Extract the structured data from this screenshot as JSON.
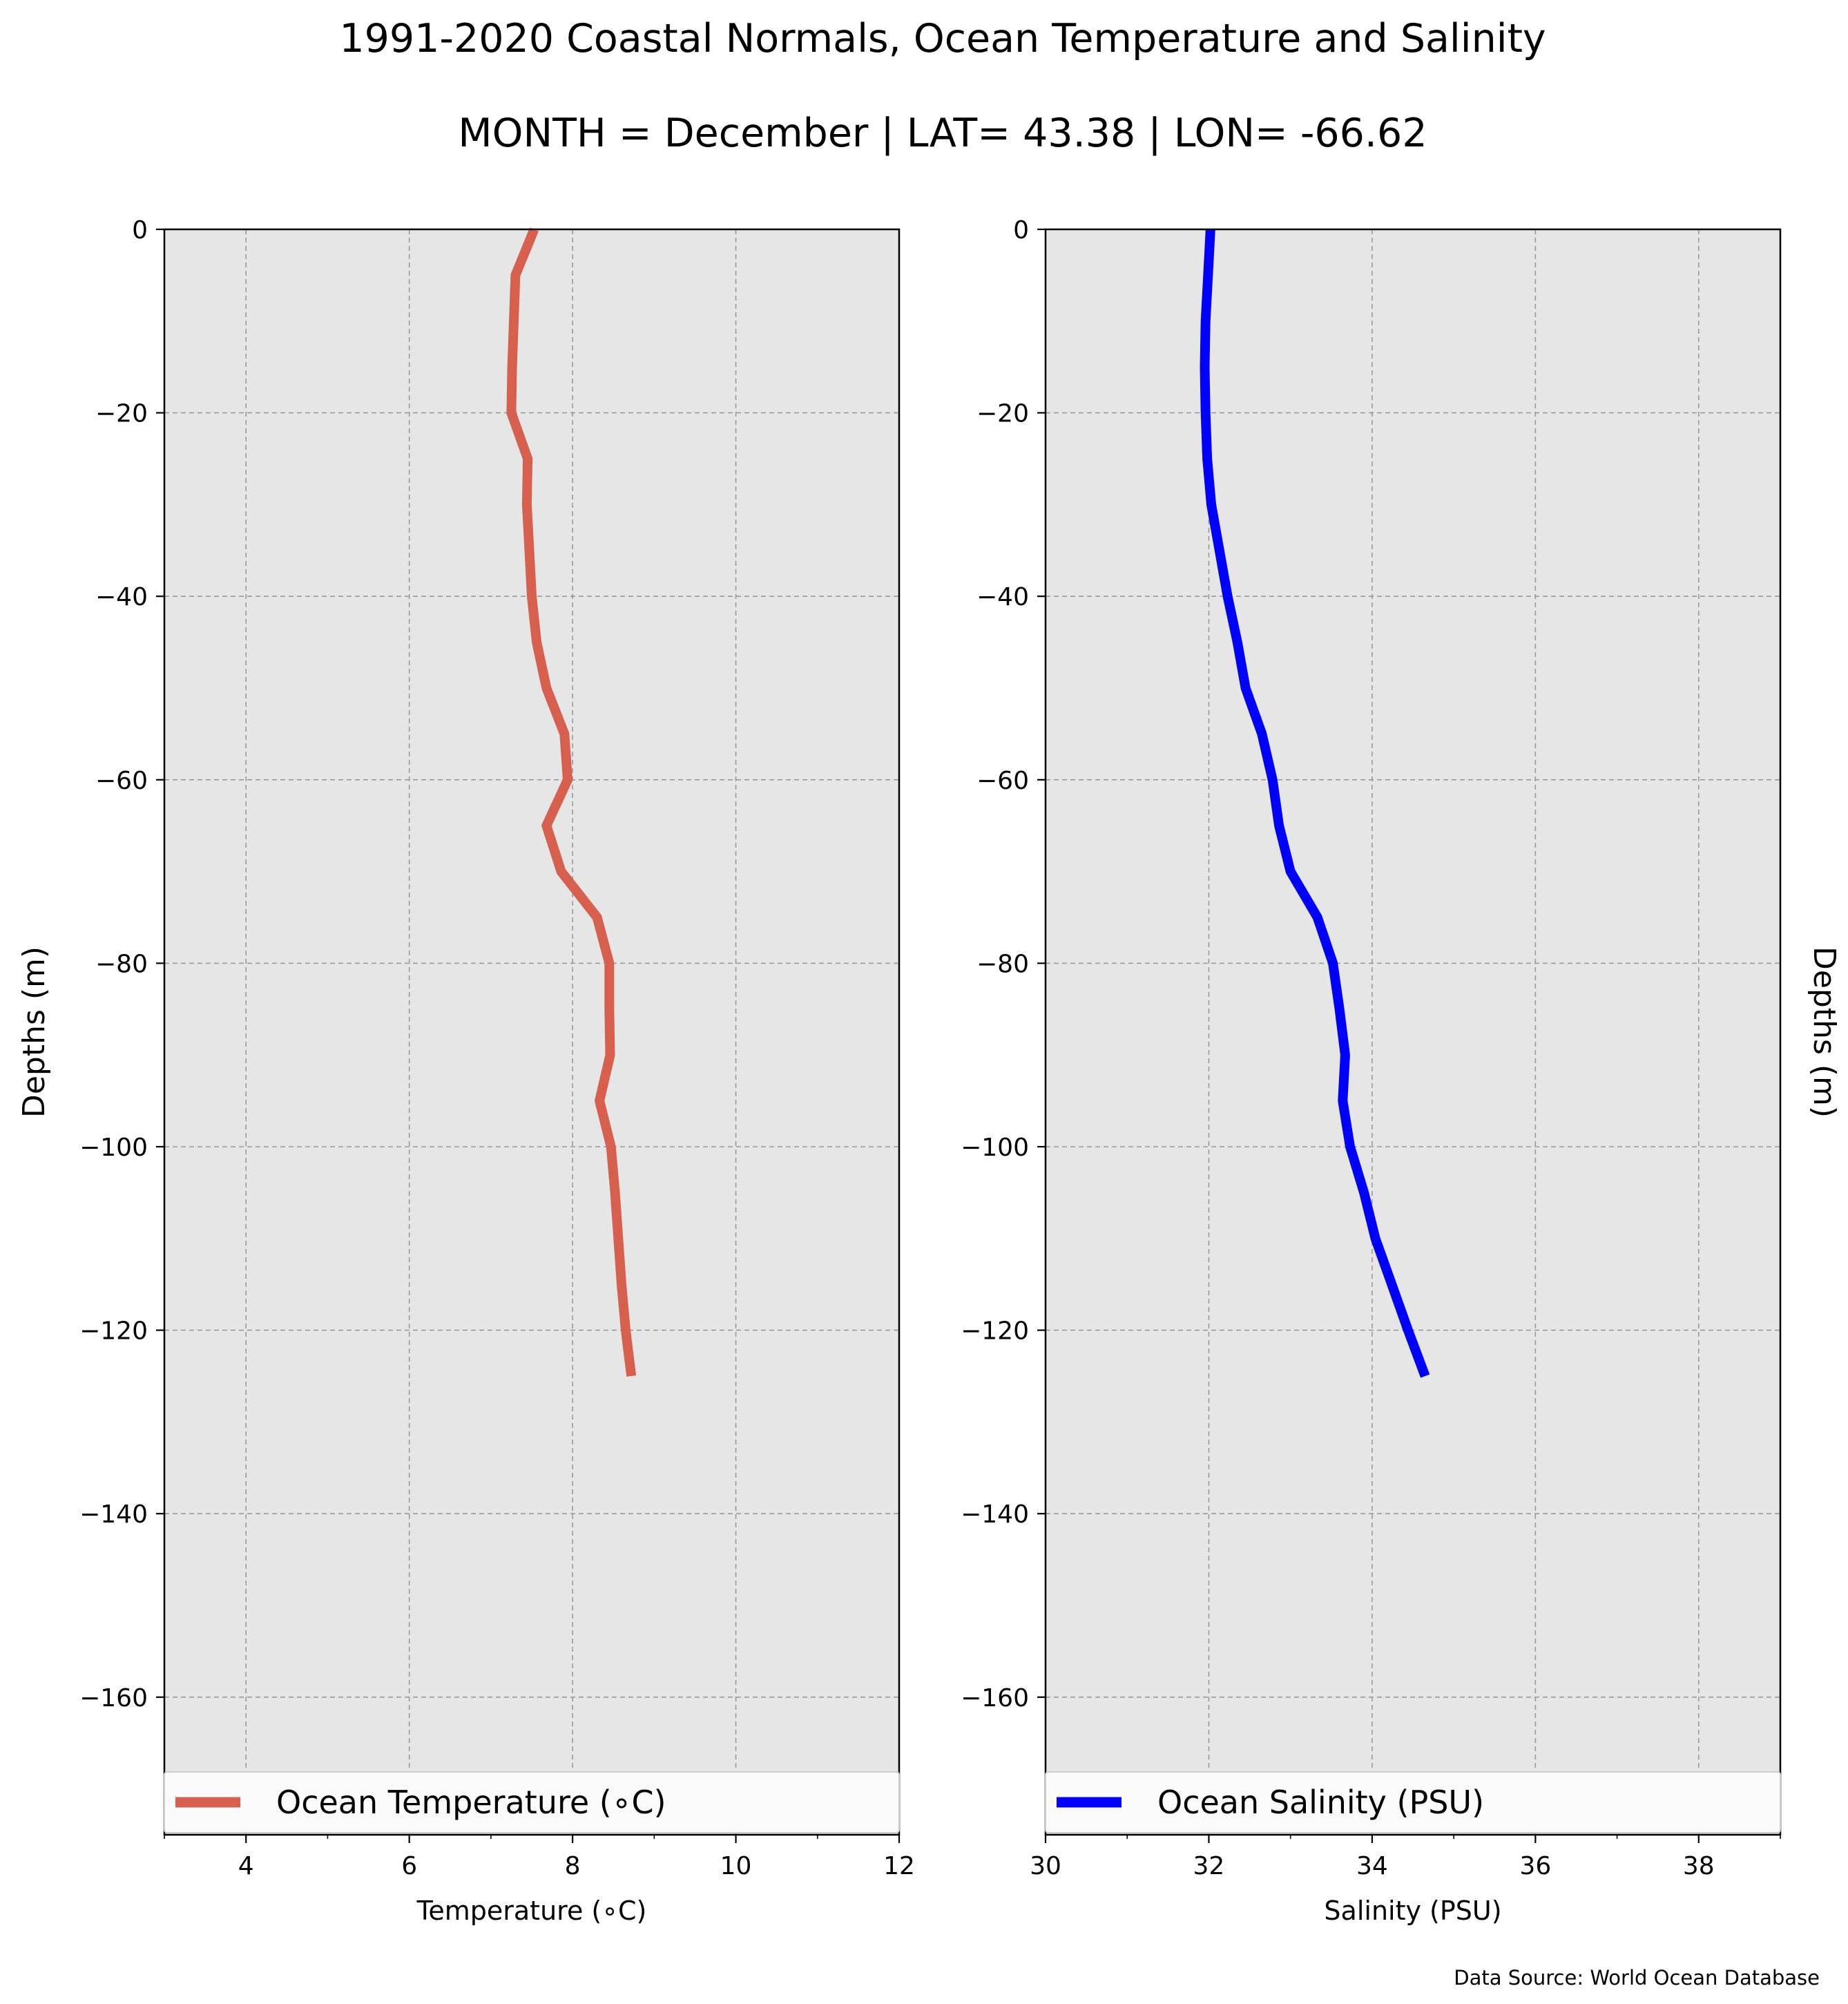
{
  "figure": {
    "title": "1991-2020 Coastal Normals, Ocean Temperature and Salinity",
    "subtitle": "MONTH = December | LAT= 43.38 | LON= -66.62",
    "source": "Data Source: World Ocean Database"
  },
  "chart_data": [
    {
      "type": "line",
      "xlabel": "Temperature ($^\\circ$C)",
      "xlabel_display": "Temperature (∘C)",
      "ylabel": "Depths (m)",
      "xlim": [
        3,
        12
      ],
      "ylim": [
        -175,
        0
      ],
      "xticks": [
        4,
        6,
        8,
        10,
        12
      ],
      "yticks": [
        0,
        -20,
        -40,
        -60,
        -80,
        -100,
        -120,
        -140,
        -160
      ],
      "grid": true,
      "legend_position": "lower center",
      "series": [
        {
          "name": "Ocean Temperature (∘C)",
          "color": "#d6604d",
          "points": [
            {
              "x": 7.53,
              "y": 0
            },
            {
              "x": 7.3,
              "y": -5
            },
            {
              "x": 7.28,
              "y": -10
            },
            {
              "x": 7.26,
              "y": -15
            },
            {
              "x": 7.25,
              "y": -20
            },
            {
              "x": 7.45,
              "y": -25
            },
            {
              "x": 7.44,
              "y": -30
            },
            {
              "x": 7.47,
              "y": -35
            },
            {
              "x": 7.5,
              "y": -40
            },
            {
              "x": 7.56,
              "y": -45
            },
            {
              "x": 7.68,
              "y": -50
            },
            {
              "x": 7.9,
              "y": -55
            },
            {
              "x": 7.94,
              "y": -60
            },
            {
              "x": 7.68,
              "y": -65
            },
            {
              "x": 7.86,
              "y": -70
            },
            {
              "x": 8.3,
              "y": -75
            },
            {
              "x": 8.45,
              "y": -80
            },
            {
              "x": 8.45,
              "y": -85
            },
            {
              "x": 8.46,
              "y": -90
            },
            {
              "x": 8.33,
              "y": -95
            },
            {
              "x": 8.47,
              "y": -100
            },
            {
              "x": 8.52,
              "y": -105
            },
            {
              "x": 8.56,
              "y": -110
            },
            {
              "x": 8.6,
              "y": -115
            },
            {
              "x": 8.65,
              "y": -120
            },
            {
              "x": 8.72,
              "y": -125
            }
          ]
        }
      ]
    },
    {
      "type": "line",
      "xlabel": "Salinity (PSU)",
      "ylabel": "Depths (m)",
      "xlim": [
        30,
        39
      ],
      "ylim": [
        -175,
        0
      ],
      "xticks": [
        30,
        32,
        34,
        36,
        38
      ],
      "yticks": [
        0,
        -20,
        -40,
        -60,
        -80,
        -100,
        -120,
        -140,
        -160
      ],
      "grid": true,
      "legend_position": "lower center",
      "series": [
        {
          "name": "Ocean Salinity (PSU)",
          "color": "#0000ff",
          "points": [
            {
              "x": 32.02,
              "y": 0
            },
            {
              "x": 31.99,
              "y": -5
            },
            {
              "x": 31.96,
              "y": -10
            },
            {
              "x": 31.95,
              "y": -15
            },
            {
              "x": 31.96,
              "y": -20
            },
            {
              "x": 31.98,
              "y": -25
            },
            {
              "x": 32.03,
              "y": -30
            },
            {
              "x": 32.13,
              "y": -35
            },
            {
              "x": 32.23,
              "y": -40
            },
            {
              "x": 32.35,
              "y": -45
            },
            {
              "x": 32.45,
              "y": -50
            },
            {
              "x": 32.65,
              "y": -55
            },
            {
              "x": 32.78,
              "y": -60
            },
            {
              "x": 32.86,
              "y": -65
            },
            {
              "x": 33.0,
              "y": -70
            },
            {
              "x": 33.33,
              "y": -75
            },
            {
              "x": 33.52,
              "y": -80
            },
            {
              "x": 33.6,
              "y": -85
            },
            {
              "x": 33.67,
              "y": -90
            },
            {
              "x": 33.64,
              "y": -95
            },
            {
              "x": 33.73,
              "y": -100
            },
            {
              "x": 33.9,
              "y": -105
            },
            {
              "x": 34.04,
              "y": -110
            },
            {
              "x": 34.24,
              "y": -115
            },
            {
              "x": 34.44,
              "y": -120
            },
            {
              "x": 34.65,
              "y": -125
            }
          ]
        }
      ]
    }
  ]
}
